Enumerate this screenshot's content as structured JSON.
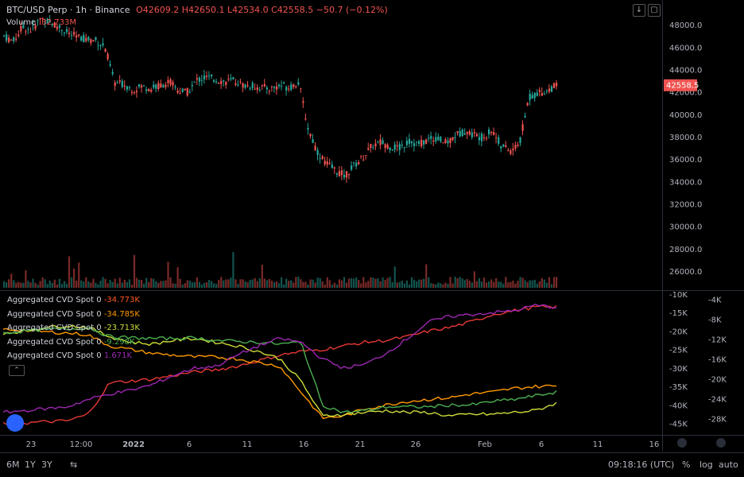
{
  "header": {
    "symbol": "BTC/USD Perp · 1h · Binance",
    "open": "O42609.2",
    "high": "H42650.1",
    "low": "L42534.0",
    "close": "C42558.5",
    "change": "−50.7 (−0.12%)",
    "volume_label": "Volume",
    "volume_value": "32.733M"
  },
  "price_tag": "42558.5",
  "price_axis": [
    "48000.0",
    "46000.0",
    "44000.0",
    "42000.0",
    "40000.0",
    "38000.0",
    "36000.0",
    "34000.0",
    "32000.0",
    "30000.0",
    "28000.0",
    "26000.0"
  ],
  "cvd_axis_left": [
    "-10K",
    "-15K",
    "-20K",
    "-25K",
    "-30K",
    "-35K",
    "-40K",
    "-45K"
  ],
  "cvd_axis_right": [
    "-4K",
    "-8K",
    "-12K",
    "-16K",
    "-20K",
    "-24K",
    "-28K"
  ],
  "time_axis": [
    "23",
    "12:00",
    "2022",
    "6",
    "11",
    "16",
    "21",
    "26",
    "Feb",
    "6",
    "11",
    "16"
  ],
  "indicators": [
    {
      "label": "Aggregated CVD Spot 0",
      "value": "-34.773K",
      "color": "#ff5722"
    },
    {
      "label": "Aggregated CVD Spot 0",
      "value": "-34.785K",
      "color": "#ff9800"
    },
    {
      "label": "Aggregated CVD Spot 0",
      "value": "-23.713K",
      "color": "#cddc39"
    },
    {
      "label": "Aggregated CVD Spot 0",
      "value": "-9.298K",
      "color": "#4caf50"
    },
    {
      "label": "Aggregated CVD Spot 0",
      "value": "1.671K",
      "color": "#9c27b0"
    }
  ],
  "bottom": {
    "ranges": [
      "6M",
      "1Y",
      "3Y"
    ],
    "time": "09:18:16 (UTC)",
    "percent": "%",
    "log": "log",
    "auto": "auto"
  },
  "colors": {
    "up": "#26a69a",
    "down": "#ef5350",
    "cvd_red": "#e53935",
    "cvd_purple": "#9c27b0"
  },
  "chart_data": {
    "type": "line",
    "title": "BTC/USD Perp · 1h · Binance",
    "price_ylim": [
      25000,
      49500
    ],
    "price_series": [
      47000,
      46500,
      47800,
      47500,
      48600,
      48200,
      47800,
      47200,
      46900,
      46700,
      46600,
      45900,
      42800,
      42700,
      42200,
      42500,
      42300,
      42600,
      42900,
      42100,
      42000,
      43100,
      43300,
      43100,
      42900,
      43000,
      42600,
      42500,
      42400,
      42300,
      42600,
      42400,
      42900,
      38800,
      36700,
      35600,
      35000,
      34500,
      35400,
      36200,
      37200,
      37500,
      37100,
      37000,
      37600,
      37300,
      37700,
      37900,
      37400,
      38100,
      38500,
      38200,
      37900,
      38600,
      37200,
      36700,
      37400,
      41500,
      41900,
      42100,
      42600
    ],
    "cvd_ylim": [
      -47000,
      -10000
    ],
    "series": [
      {
        "name": "Aggregated CVD Spot 0",
        "values": [
          -45000,
          -44900,
          -44500,
          -44300,
          -42500,
          -34000,
          -33500,
          -33000,
          -32000,
          -31000,
          -30500,
          -29500,
          -28000,
          -26500,
          -25500,
          -25000,
          -24000,
          -23000,
          -22500,
          -21500,
          -20000,
          -19000,
          -17500,
          -15500,
          -14500,
          -13500,
          -13500
        ]
      },
      {
        "name": "Aggregated CVD Spot 0",
        "values": [
          -19500,
          -19800,
          -20200,
          -20500,
          -21000,
          -24000,
          -25000,
          -26000,
          -26500,
          -27000,
          -27000,
          -27500,
          -28500,
          -29500,
          -36500,
          -43500,
          -43000,
          -41000,
          -40000,
          -39000,
          -38500,
          -38000,
          -37000,
          -36500,
          -35500,
          -35000,
          -34800
        ]
      },
      {
        "name": "Aggregated CVD Spot 0",
        "values": [
          -20500,
          -20000,
          -19000,
          -18500,
          -19000,
          -21500,
          -23000,
          -23500,
          -22500,
          -22000,
          -23000,
          -24000,
          -25500,
          -27500,
          -33500,
          -43000,
          -42500,
          -42000,
          -41500,
          -42000,
          -42000,
          -43000,
          -42500,
          -42500,
          -42000,
          -41500,
          -39500
        ]
      },
      {
        "name": "Aggregated CVD Spot 0",
        "values": [
          -20500,
          -20000,
          -19500,
          -19500,
          -19000,
          -21500,
          -21800,
          -22000,
          -22000,
          -21800,
          -22500,
          -22800,
          -23000,
          -23500,
          -23000,
          -40000,
          -42000,
          -41500,
          -40500,
          -40500,
          -40500,
          -40000,
          -40000,
          -39000,
          -38500,
          -37500,
          -36500
        ]
      }
    ],
    "series_purple": [
      -42000,
      -41500,
      -41000,
      -40500,
      -38500,
      -37000,
      -36000,
      -34500,
      -32000,
      -30000,
      -29500,
      -26500,
      -24000,
      -22000,
      -23000,
      -27500,
      -30000,
      -29000,
      -26000,
      -22000,
      -17500,
      -16000,
      -15500,
      -15000,
      -14500,
      -13000,
      -13500
    ],
    "cvd_right_ylim": [
      -30000,
      -2500
    ]
  }
}
